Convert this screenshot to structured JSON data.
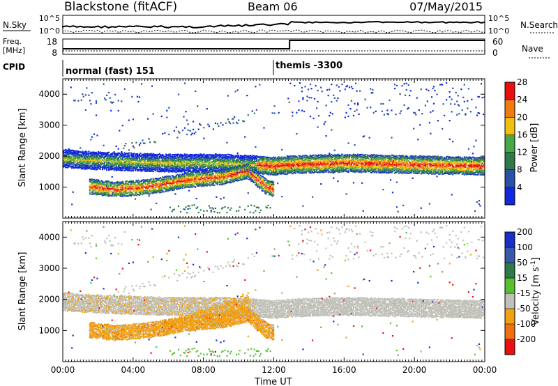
{
  "header": {
    "site": "Blackstone (fitACF)",
    "beam": "Beam 06",
    "date": "07/May/2015"
  },
  "noise_panel": {
    "left_label": "N.Sky",
    "right_label": "N.Search",
    "left_ticks": [
      "10^5",
      "10^0"
    ],
    "right_ticks": [
      "10^5",
      "10^0"
    ]
  },
  "freq_panel": {
    "left_label_1": "Freq.",
    "left_label_2": "[MHz]",
    "left_ticks": [
      "18",
      "8"
    ],
    "right_label": "Nave",
    "right_ticks": [
      "60",
      "0"
    ],
    "freq_step_hour": 12.9
  },
  "cpid_panel": {
    "label": "CPID",
    "modes": [
      {
        "start_hour": 0,
        "text": "normal (fast) 151"
      },
      {
        "start_hour": 12.05,
        "text": "themis -3300"
      }
    ]
  },
  "chart_data": [
    {
      "type": "heatmap",
      "name": "Power",
      "xlabel": "",
      "ylabel": "Slant Range [km]",
      "xlim": [
        0,
        24
      ],
      "ylim": [
        0,
        4500
      ],
      "y_ticks": [
        1000,
        2000,
        3000,
        4000
      ],
      "colorbar_label": "Power [dB]",
      "colorbar_ticks": [
        "4",
        "8",
        "12",
        "16",
        "20",
        "24",
        "28"
      ],
      "colorbar_colors": [
        "#1028e0",
        "#2a50a8",
        "#2f7a4a",
        "#48a848",
        "#f0c010",
        "#f07c10",
        "#e81010"
      ],
      "echo_bands": [
        {
          "desc": "main E/F band (power)",
          "points": [
            [
              0,
              1950
            ],
            [
              1,
              1900
            ],
            [
              3,
              1850
            ],
            [
              6,
              1800
            ],
            [
              9,
              1800
            ],
            [
              11,
              1750
            ],
            [
              12,
              1700
            ],
            [
              13,
              1750
            ],
            [
              16,
              1800
            ],
            [
              20,
              1750
            ],
            [
              24,
              1700
            ]
          ]
        },
        {
          "desc": "low band (power)",
          "points": [
            [
              1.5,
              1000
            ],
            [
              3,
              900
            ],
            [
              5,
              1000
            ],
            [
              7,
              1200
            ],
            [
              9,
              1300
            ],
            [
              10.5,
              1500
            ],
            [
              11.5,
              1000
            ],
            [
              12,
              900
            ]
          ]
        }
      ]
    },
    {
      "type": "heatmap",
      "name": "Velocity",
      "xlabel": "Time UT",
      "ylabel": "Slant Range [km]",
      "xlim": [
        0,
        24
      ],
      "ylim": [
        0,
        4500
      ],
      "y_ticks": [
        1000,
        2000,
        3000,
        4000
      ],
      "x_ticks": [
        "00:00",
        "04:00",
        "08:00",
        "12:00",
        "16:00",
        "20:00",
        "00:00"
      ],
      "colorbar_label": "Velocity [m s",
      "colorbar_label_sup": "-1",
      "colorbar_label_end": "]",
      "colorbar_ticks": [
        "200",
        "100",
        "50",
        "15",
        "-15",
        "-50",
        "-100",
        "-200"
      ],
      "colorbar_colors": [
        "#1830c8",
        "#3858a8",
        "#2f7a4a",
        "#58c030",
        "#c0c0b8",
        "#f0a010",
        "#f07010",
        "#e81010",
        "#e81010"
      ]
    }
  ]
}
